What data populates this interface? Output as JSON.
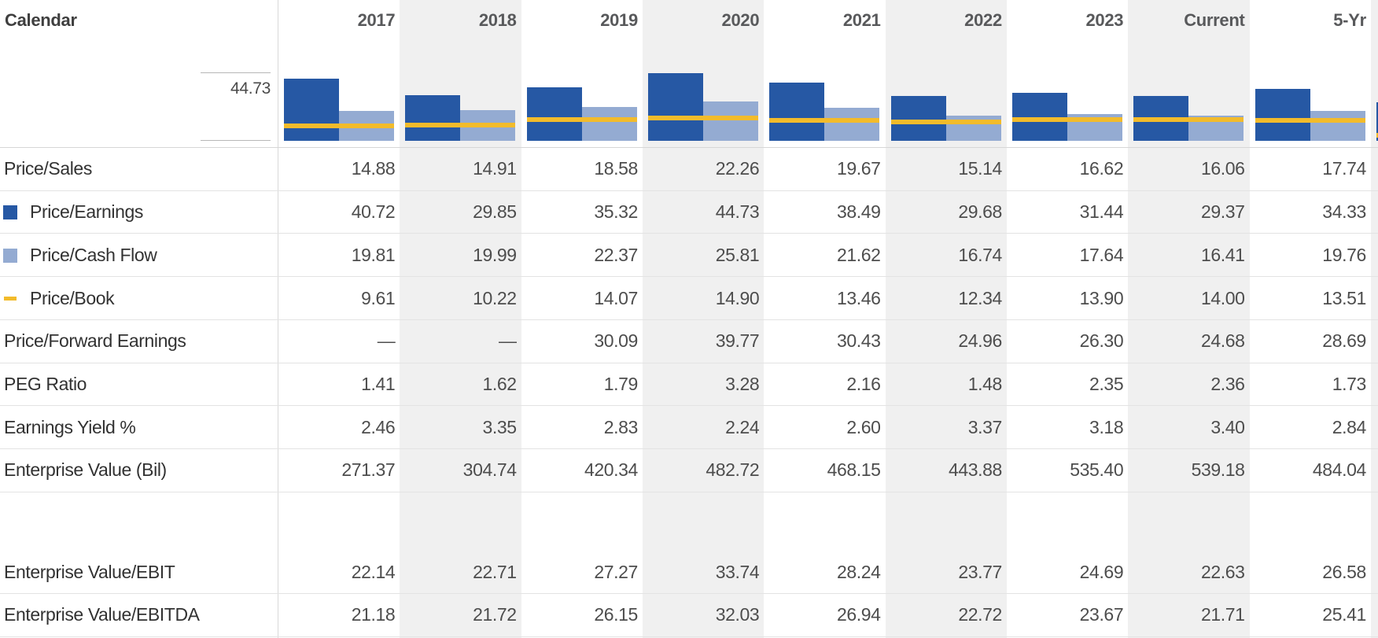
{
  "header": {
    "left_label": "Calendar",
    "columns": [
      {
        "label": "2017",
        "shaded": false
      },
      {
        "label": "2018",
        "shaded": true
      },
      {
        "label": "2019",
        "shaded": false
      },
      {
        "label": "2020",
        "shaded": true
      },
      {
        "label": "2021",
        "shaded": false
      },
      {
        "label": "2022",
        "shaded": true
      },
      {
        "label": "2023",
        "shaded": false
      },
      {
        "label": "Current",
        "shaded": true
      },
      {
        "label": "5-Yr",
        "shaded": false
      }
    ]
  },
  "chart": {
    "axis_max_label": "44.73",
    "clipped_next_column": {
      "shaded": true,
      "p_e": 25.4,
      "p_b": 3.4
    }
  },
  "chart_data": {
    "type": "bar",
    "categories": [
      "2017",
      "2018",
      "2019",
      "2020",
      "2021",
      "2022",
      "2023",
      "Current",
      "5-Yr"
    ],
    "series": [
      {
        "name": "Price/Earnings",
        "type": "bar",
        "color": "#2658a4",
        "values": [
          40.72,
          29.85,
          35.32,
          44.73,
          38.49,
          29.68,
          31.44,
          29.37,
          34.33
        ]
      },
      {
        "name": "Price/Cash Flow",
        "type": "bar",
        "color": "#94abd2",
        "values": [
          19.81,
          19.99,
          22.37,
          25.81,
          21.62,
          16.74,
          17.64,
          16.41,
          19.76
        ]
      },
      {
        "name": "Price/Book",
        "type": "line",
        "color": "#f2bb2b",
        "values": [
          9.61,
          10.22,
          14.07,
          14.9,
          13.46,
          12.34,
          13.9,
          14.0,
          13.51
        ]
      }
    ],
    "title": "",
    "xlabel": "",
    "ylabel": "",
    "ylim": [
      0,
      44.73
    ],
    "grid": false,
    "legend_position": "left-table-rows",
    "annotation": "44.73"
  },
  "table": {
    "rows": [
      {
        "label": "Price/Sales",
        "swatch": null,
        "values": [
          "14.88",
          "14.91",
          "18.58",
          "22.26",
          "19.67",
          "15.14",
          "16.62",
          "16.06",
          "17.74"
        ]
      },
      {
        "label": "Price/Earnings",
        "swatch": "dark-square",
        "values": [
          "40.72",
          "29.85",
          "35.32",
          "44.73",
          "38.49",
          "29.68",
          "31.44",
          "29.37",
          "34.33"
        ]
      },
      {
        "label": "Price/Cash Flow",
        "swatch": "light-square",
        "values": [
          "19.81",
          "19.99",
          "22.37",
          "25.81",
          "21.62",
          "16.74",
          "17.64",
          "16.41",
          "19.76"
        ]
      },
      {
        "label": "Price/Book",
        "swatch": "yellow-dash",
        "values": [
          "9.61",
          "10.22",
          "14.07",
          "14.90",
          "13.46",
          "12.34",
          "13.90",
          "14.00",
          "13.51"
        ]
      },
      {
        "label": "Price/Forward Earnings",
        "swatch": null,
        "values": [
          "—",
          "—",
          "30.09",
          "39.77",
          "30.43",
          "24.96",
          "26.30",
          "24.68",
          "28.69"
        ]
      },
      {
        "label": "PEG Ratio",
        "swatch": null,
        "values": [
          "1.41",
          "1.62",
          "1.79",
          "3.28",
          "2.16",
          "1.48",
          "2.35",
          "2.36",
          "1.73"
        ]
      },
      {
        "label": "Earnings Yield %",
        "swatch": null,
        "values": [
          "2.46",
          "3.35",
          "2.83",
          "2.24",
          "2.60",
          "3.37",
          "3.18",
          "3.40",
          "2.84"
        ]
      },
      {
        "label": "Enterprise Value (Bil)",
        "swatch": null,
        "gap_after": true,
        "values": [
          "271.37",
          "304.74",
          "420.34",
          "482.72",
          "468.15",
          "443.88",
          "535.40",
          "539.18",
          "484.04"
        ]
      },
      {
        "label": "Enterprise Value/EBIT",
        "swatch": null,
        "values": [
          "22.14",
          "22.71",
          "27.27",
          "33.74",
          "28.24",
          "23.77",
          "24.69",
          "22.63",
          "26.58"
        ]
      },
      {
        "label": "Enterprise Value/EBITDA",
        "swatch": null,
        "values": [
          "21.18",
          "21.72",
          "26.15",
          "32.03",
          "26.94",
          "22.72",
          "23.67",
          "21.71",
          "25.41"
        ]
      }
    ]
  },
  "colors": {
    "dark_blue": "#2658a4",
    "light_blue": "#94abd2",
    "yellow": "#f2bb2b",
    "column_shade": "#f0f0f0",
    "row_border": "#e3e3e3",
    "table_top_border": "#d6d6d6",
    "axis_line": "#b7b7b7",
    "vertical_divider": "#d9d9d9"
  }
}
